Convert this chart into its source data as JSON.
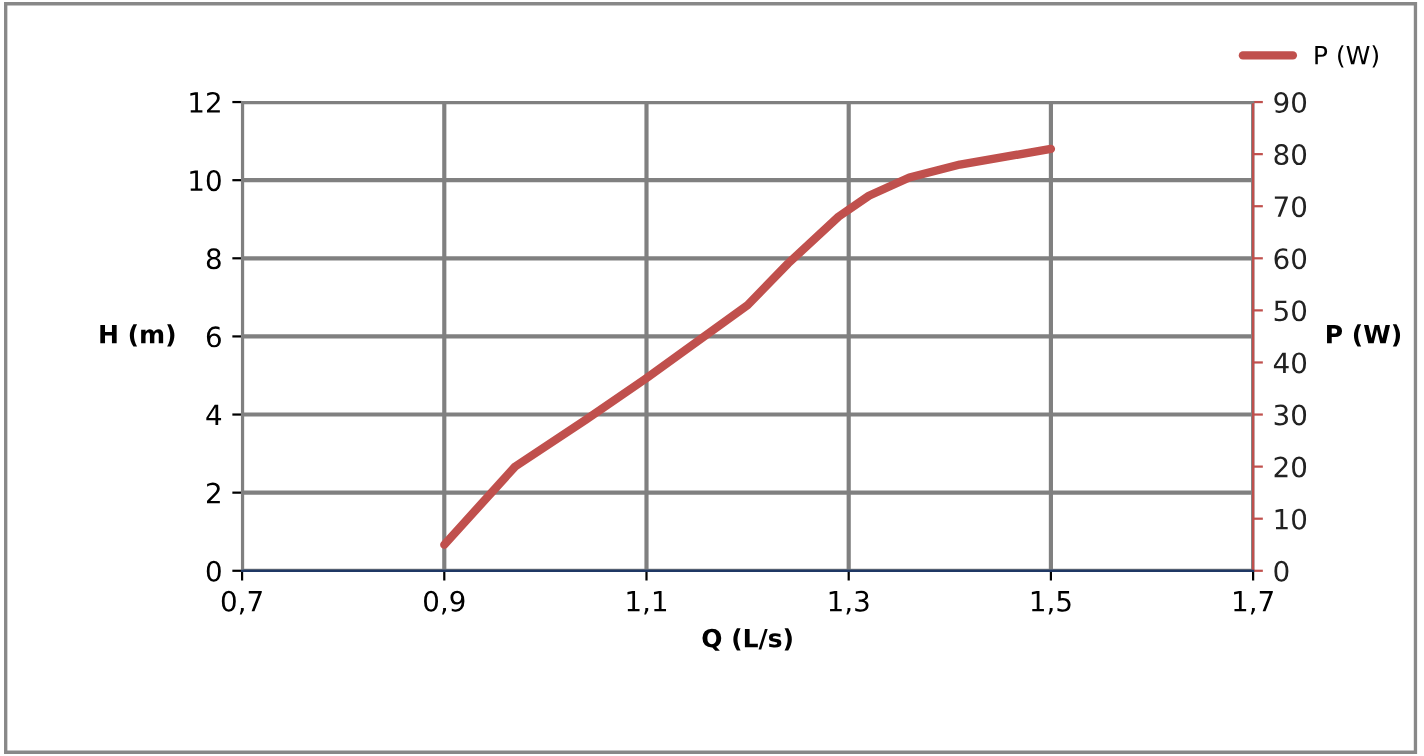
{
  "chart_data": {
    "type": "line",
    "xlabel": "Q (L/s)",
    "ylabel": "H (m)",
    "y2label": "P (W)",
    "xlim": [
      0.7,
      1.7
    ],
    "xticks": [
      {
        "value": 0.7,
        "label": "0,7"
      },
      {
        "value": 0.9,
        "label": "0,9"
      },
      {
        "value": 1.1,
        "label": "1,1"
      },
      {
        "value": 1.3,
        "label": "1,3"
      },
      {
        "value": 1.5,
        "label": "1,5"
      },
      {
        "value": 1.7,
        "label": "1,7"
      }
    ],
    "ylim": [
      0,
      12
    ],
    "yticks": [
      0,
      2,
      4,
      6,
      8,
      10,
      12
    ],
    "y2lim": [
      0,
      90
    ],
    "y2ticks": [
      0,
      10,
      20,
      30,
      40,
      50,
      60,
      70,
      80,
      90
    ],
    "grid": true,
    "legend": "top right",
    "line_style": "solid",
    "marker": "none",
    "series": [
      {
        "name": "P (W)",
        "color": "#c0504d",
        "axis": "y2",
        "x": [
          0.9,
          0.97,
          1.04,
          1.1,
          1.2,
          1.24,
          1.29,
          1.32,
          1.36,
          1.41,
          1.5
        ],
        "values": [
          5,
          20,
          29,
          37,
          51,
          59,
          68,
          72,
          75.5,
          78,
          81
        ]
      }
    ]
  }
}
